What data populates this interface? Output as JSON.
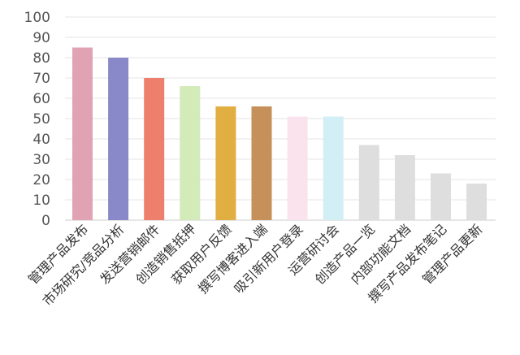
{
  "chart_data": {
    "type": "bar",
    "categories": [
      "管理产品发布",
      "市场研究/竞品分析",
      "发送营销邮件",
      "创造销售抵押",
      "获取用户反馈",
      "撰写博客进入端",
      "吸引新用户登录",
      "运营研讨会",
      "创造产品一览",
      "内部功能文档",
      "撰写产品发布笔记",
      "管理产品更新"
    ],
    "values": [
      85,
      80,
      70,
      66,
      56,
      56,
      51,
      51,
      37,
      32,
      23,
      18
    ],
    "colors": [
      "#dfa3b3",
      "#8988c9",
      "#ee7f6d",
      "#d3eab9",
      "#e1ae41",
      "#c5905a",
      "#fae3ec",
      "#d3eff6",
      "#dedede",
      "#dedede",
      "#dedede",
      "#dedede"
    ],
    "yticks": [
      "0",
      "10",
      "20",
      "30",
      "40",
      "50",
      "60",
      "70",
      "80",
      "90",
      "100"
    ],
    "ylim": [
      0,
      100
    ],
    "title": "",
    "xlabel": "",
    "ylabel": "",
    "grid": true,
    "legend": "none"
  }
}
